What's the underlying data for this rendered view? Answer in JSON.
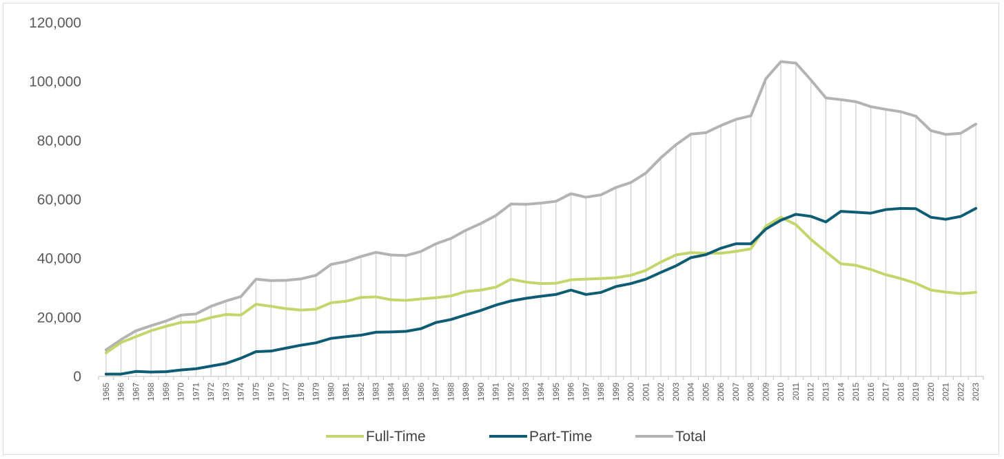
{
  "chart_data": {
    "type": "line",
    "title": "",
    "xlabel": "",
    "ylabel": "",
    "ylim": [
      0,
      120000
    ],
    "yticks": [
      0,
      20000,
      40000,
      60000,
      80000,
      100000,
      120000
    ],
    "ytick_labels": [
      "0",
      "20,000",
      "40,000",
      "60,000",
      "80,000",
      "100,000",
      "120,000"
    ],
    "grid": "vertical drop lines from Total series",
    "legend_position": "bottom",
    "categories": [
      "1965",
      "1966",
      "1967",
      "1968",
      "1969",
      "1970",
      "1971",
      "1972",
      "1973",
      "1974",
      "1975",
      "1976",
      "1977",
      "1978",
      "1979",
      "1980",
      "1981",
      "1982",
      "1983",
      "1984",
      "1985",
      "1986",
      "1987",
      "1988",
      "1989",
      "1990",
      "1991",
      "1992",
      "1993",
      "1994",
      "1995",
      "1996",
      "1997",
      "1998",
      "1999",
      "2000",
      "2001",
      "2002",
      "2003",
      "2004",
      "2005",
      "2006",
      "2007",
      "2008",
      "2009",
      "2010",
      "2011",
      "2012",
      "2013",
      "2014",
      "2015",
      "2016",
      "2017",
      "2018",
      "2019",
      "2020",
      "2021",
      "2022",
      "2023"
    ],
    "series": [
      {
        "name": "Full-Time",
        "color": "#c3d66b",
        "values": [
          8000,
          11500,
          13500,
          15500,
          17000,
          18300,
          18500,
          20000,
          21000,
          20800,
          24500,
          23800,
          23000,
          22500,
          22800,
          25000,
          25500,
          26800,
          27000,
          26000,
          25800,
          26300,
          26700,
          27300,
          28800,
          29300,
          30300,
          33000,
          32000,
          31500,
          31600,
          32800,
          33000,
          33200,
          33500,
          34300,
          36000,
          38800,
          41200,
          42000,
          41800,
          41800,
          42400,
          43300,
          51000,
          54000,
          51500,
          46500,
          42300,
          38200,
          37700,
          36300,
          34500,
          33200,
          31600,
          29300,
          28600,
          28100,
          28500
        ]
      },
      {
        "name": "Part-Time",
        "color": "#0e5c73",
        "values": [
          800,
          800,
          1700,
          1500,
          1600,
          2200,
          2600,
          3500,
          4400,
          6200,
          8400,
          8600,
          9600,
          10600,
          11400,
          12900,
          13500,
          14000,
          15000,
          15100,
          15300,
          16200,
          18300,
          19300,
          20900,
          22400,
          24200,
          25600,
          26500,
          27200,
          27800,
          29300,
          27800,
          28500,
          30500,
          31500,
          33000,
          35300,
          37500,
          40300,
          41300,
          43500,
          45000,
          45000,
          50000,
          53000,
          55000,
          54300,
          52400,
          56000,
          55700,
          55400,
          56600,
          57000,
          56900,
          54000,
          53300,
          54300,
          57000
        ]
      },
      {
        "name": "Total",
        "color": "#b3b3b3",
        "values": [
          9000,
          12500,
          15500,
          17200,
          18800,
          20800,
          21200,
          23800,
          25600,
          27100,
          33000,
          32500,
          32600,
          33100,
          34300,
          38000,
          39000,
          40700,
          42100,
          41200,
          41000,
          42400,
          45000,
          46800,
          49600,
          51900,
          54600,
          58500,
          58400,
          58800,
          59400,
          62000,
          60800,
          61600,
          64100,
          65800,
          69000,
          74200,
          78600,
          82200,
          82700,
          85100,
          87200,
          88400,
          101000,
          106800,
          106300,
          100600,
          94500,
          93900,
          93200,
          91500,
          90600,
          89800,
          88300,
          83400,
          82100,
          82500,
          85600
        ]
      }
    ]
  }
}
